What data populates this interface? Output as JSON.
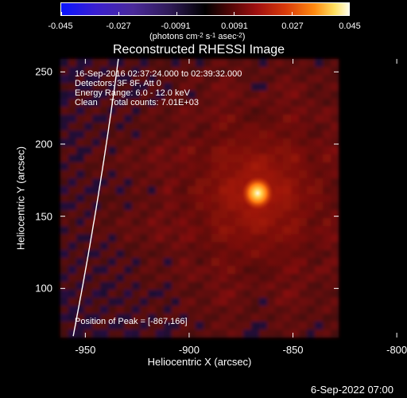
{
  "colorbar": {
    "tick_labels": [
      "-0.045",
      "-0.027",
      "-0.0091",
      "0.0091",
      "0.027",
      "0.045"
    ],
    "range": [
      -0.045,
      0.045
    ],
    "units_prefix": "(photons cm",
    "units_exp1": "-2",
    "units_mid1": " s",
    "units_exp2": "-1",
    "units_mid2": " asec",
    "units_exp3": "-2",
    "units_suffix": ")"
  },
  "chart_data": {
    "type": "heatmap",
    "title": "Reconstructed RHESSI Image",
    "xlabel": "Heliocentric X (arcsec)",
    "ylabel": "Heliocentric Y (arcsec)",
    "xlim": [
      -962,
      -828
    ],
    "ylim": [
      66,
      259
    ],
    "x_ticks": [
      "-950",
      "-900",
      "-850",
      "-800"
    ],
    "y_ticks": [
      "100",
      "150",
      "200",
      "250"
    ],
    "x_tick_values": [
      -950,
      -900,
      -850,
      -800
    ],
    "y_tick_values": [
      100,
      150,
      200,
      250
    ],
    "colormap_range": [
      -0.045,
      0.045
    ],
    "peak": [
      -867,
      166
    ],
    "annotations": {
      "time": "16-Sep-2016 02:37:24.000 to 02:39:32.000",
      "detectors": "Detectors: 3F 8F, Att 0",
      "energy": "Energy Range: 6.0 - 12.0 keV",
      "method": "Clean     Total counts: 7.01E+03",
      "peak_label": "Position of Peak = [-867,166]"
    }
  },
  "footer": {
    "date": "6-Sep-2022 07:00"
  }
}
